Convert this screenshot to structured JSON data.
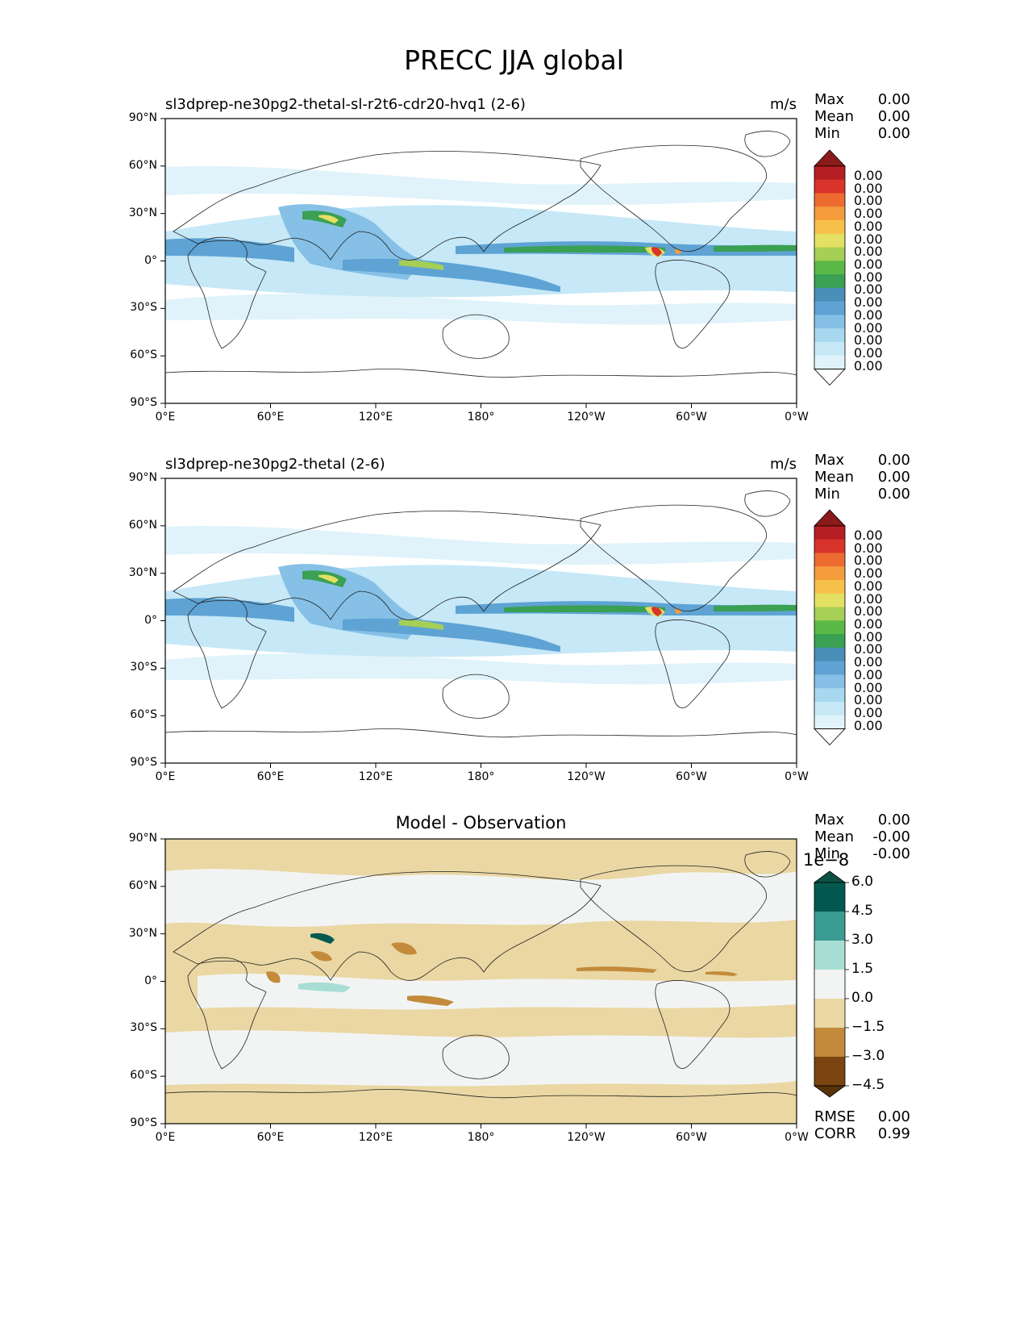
{
  "figure": {
    "title": "PRECC JJA global"
  },
  "panels": [
    {
      "title": "sl3dprep-ne30pg2-thetal-sl-r2t6-cdr20-hvq1 (2-6)",
      "units": "m/s",
      "stats": [
        {
          "label": "Max",
          "value": "0.00"
        },
        {
          "label": "Mean",
          "value": "0.00"
        },
        {
          "label": "Min",
          "value": "0.00"
        }
      ]
    },
    {
      "title": "sl3dprep-ne30pg2-thetal (2-6)",
      "units": "m/s",
      "stats": [
        {
          "label": "Max",
          "value": "0.00"
        },
        {
          "label": "Mean",
          "value": "0.00"
        },
        {
          "label": "Min",
          "value": "0.00"
        }
      ]
    },
    {
      "title": "Model - Observation",
      "units": "",
      "stats": [
        {
          "label": "Max",
          "value": "0.00"
        },
        {
          "label": "Mean",
          "value": "-0.00"
        },
        {
          "label": "Min",
          "value": "-0.00"
        }
      ],
      "extra_stats": [
        {
          "label": "RMSE",
          "value": "0.00"
        },
        {
          "label": "CORR",
          "value": "0.99"
        }
      ]
    }
  ],
  "axes": {
    "lat_ticks": [
      "90°N",
      "60°N",
      "30°N",
      "0°",
      "30°S",
      "60°S",
      "90°S"
    ],
    "lon_ticks": [
      "0°E",
      "60°E",
      "120°E",
      "180°",
      "120°W",
      "60°W",
      "0°W"
    ]
  },
  "colorbar_precip": {
    "labels": [
      "0.00",
      "0.00",
      "0.00",
      "0.00",
      "0.00",
      "0.00",
      "0.00",
      "0.00",
      "0.00",
      "0.00",
      "0.00",
      "0.00",
      "0.00",
      "0.00",
      "0.00",
      "0.00"
    ],
    "colors": [
      "#ffffff",
      "#e0f3fb",
      "#c6e8f7",
      "#a8d8f0",
      "#86c0e6",
      "#5ea3d4",
      "#4a8fb8",
      "#3aa053",
      "#5ab847",
      "#a5cf55",
      "#e3e063",
      "#f7c04a",
      "#f59d3d",
      "#ed6b2f",
      "#d9342b",
      "#b51f24",
      "#8b1a1a"
    ]
  },
  "colorbar_diff": {
    "exponent": "1e−8",
    "labels": [
      "6.0",
      "4.5",
      "3.0",
      "1.5",
      "0.0",
      "−1.5",
      "−3.0",
      "−4.5"
    ],
    "colors": [
      "#0c5144",
      "#03594f",
      "#3a9c92",
      "#a8ddd3",
      "#f2f4f4",
      "#ead7a3",
      "#c28a3a",
      "#7a4510",
      "#5a3208"
    ]
  }
}
